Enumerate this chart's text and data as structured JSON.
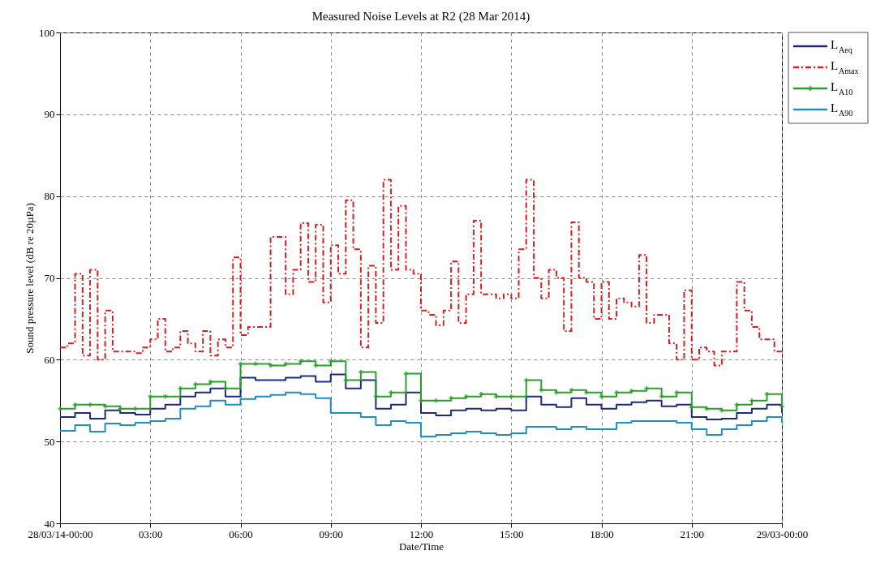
{
  "chart_data": {
    "type": "step",
    "title": "Measured Noise Levels at R2 (28 Mar 2014)",
    "xlabel": "Date/Time",
    "ylabel": "Sound pressure level (dB re 20µPa)",
    "xlim": [
      0,
      24
    ],
    "ylim": [
      40,
      100
    ],
    "xticks": [
      {
        "value": 0,
        "label": "28/03/14-00:00"
      },
      {
        "value": 3,
        "label": "03:00"
      },
      {
        "value": 6,
        "label": "06:00"
      },
      {
        "value": 9,
        "label": "09:00"
      },
      {
        "value": 12,
        "label": "12:00"
      },
      {
        "value": 15,
        "label": "15:00"
      },
      {
        "value": 18,
        "label": "18:00"
      },
      {
        "value": 21,
        "label": "21:00"
      },
      {
        "value": 24,
        "label": "29/03-00:00"
      }
    ],
    "yticks": [
      40,
      50,
      60,
      70,
      80,
      90,
      100
    ],
    "grid": true,
    "legend": "top right",
    "marker": "none",
    "line_style": "solid",
    "x": [
      0,
      0.5,
      1,
      1.5,
      2,
      2.5,
      3,
      3.5,
      4,
      4.5,
      5,
      5.5,
      6,
      6.5,
      7,
      7.5,
      8,
      8.5,
      9,
      9.5,
      10,
      10.5,
      11,
      11.5,
      12,
      12.5,
      13,
      13.5,
      14,
      14.5,
      15,
      15.5,
      16,
      16.5,
      17,
      17.5,
      18,
      18.5,
      19,
      19.5,
      20,
      20.5,
      21,
      21.5,
      22,
      22.5,
      23,
      23.5,
      24
    ],
    "series": [
      {
        "name": "L$_{Aeq}$",
        "color": "#1f2a7a",
        "values": [
          53,
          53.5,
          52.8,
          53.8,
          53.5,
          53.3,
          54,
          54.5,
          55.5,
          56,
          56.5,
          55.5,
          57.8,
          57.5,
          57.5,
          57.8,
          58,
          57.3,
          58.2,
          56.5,
          57.5,
          54,
          54.5,
          56,
          53.5,
          53.2,
          53.8,
          54,
          53.8,
          54,
          53.8,
          55.5,
          54.5,
          54.2,
          55.3,
          54.5,
          54,
          54.5,
          54.8,
          55,
          54.3,
          54.5,
          53,
          52.7,
          52.8,
          53.5,
          54,
          54.5,
          53.5
        ]
      },
      {
        "name": "L$_{Amax}$",
        "color": "#d42020",
        "line_style": "dashed",
        "x": [
          0,
          0.25,
          0.5,
          0.75,
          1,
          1.25,
          1.5,
          1.75,
          2,
          2.25,
          2.5,
          2.75,
          3,
          3.25,
          3.5,
          3.75,
          4,
          4.25,
          4.5,
          4.75,
          5,
          5.25,
          5.5,
          5.75,
          6,
          6.25,
          6.5,
          6.75,
          7,
          7.25,
          7.5,
          7.75,
          8,
          8.25,
          8.5,
          8.75,
          9,
          9.25,
          9.5,
          9.75,
          10,
          10.25,
          10.5,
          10.75,
          11,
          11.25,
          11.5,
          11.75,
          12,
          12.25,
          12.5,
          12.75,
          13,
          13.25,
          13.5,
          13.75,
          14,
          14.25,
          14.5,
          14.75,
          15,
          15.25,
          15.5,
          15.75,
          16,
          16.25,
          16.5,
          16.75,
          17,
          17.25,
          17.5,
          17.75,
          18,
          18.25,
          18.5,
          18.75,
          19,
          19.25,
          19.5,
          19.75,
          20,
          20.25,
          20.5,
          20.75,
          21,
          21.25,
          21.5,
          21.75,
          22,
          22.25,
          22.5,
          22.75,
          23,
          23.25,
          23.5,
          23.75,
          24
        ],
        "values": [
          61.5,
          62,
          70.5,
          60.5,
          71,
          60,
          66,
          61,
          61,
          61,
          60.8,
          61.5,
          62.5,
          65,
          61,
          61.5,
          63.5,
          62,
          61,
          63.5,
          60.5,
          62.5,
          61.5,
          72.5,
          63,
          64,
          64,
          64,
          75,
          75,
          68,
          71,
          76.7,
          69.5,
          76.5,
          67,
          74,
          70.5,
          79.5,
          73.5,
          61.5,
          71.5,
          64.5,
          82,
          71,
          78.8,
          71,
          70.5,
          66,
          65.5,
          64.2,
          66,
          72,
          64.5,
          68,
          77,
          68,
          68,
          67.5,
          68,
          67.5,
          73.5,
          82,
          70,
          67.5,
          71,
          70,
          63.5,
          76.8,
          70,
          69.5,
          65,
          69.5,
          65,
          67.5,
          67,
          66.5,
          72.8,
          64.5,
          65.5,
          65.5,
          62,
          60,
          68.5,
          60,
          61.5,
          61,
          59.3,
          61,
          61,
          69.5,
          66,
          64,
          62.5,
          62.5,
          61,
          61
        ]
      },
      {
        "name": "L$_{A10}$",
        "color": "#2aa02a",
        "marker": "cross",
        "values": [
          54,
          54.5,
          54.5,
          54.3,
          54,
          54,
          55.5,
          55.5,
          56.5,
          57,
          57.3,
          56.5,
          59.5,
          59.5,
          59.3,
          59.5,
          59.8,
          59.3,
          59.8,
          57.5,
          58.5,
          55.5,
          56,
          58.3,
          55,
          55,
          55.3,
          55.5,
          55.8,
          55.5,
          55.5,
          57.5,
          56.3,
          56,
          56.3,
          56,
          55.5,
          56,
          56.2,
          56.5,
          55.5,
          56,
          54.2,
          54,
          53.8,
          54.5,
          55,
          55.8,
          54.3
        ]
      },
      {
        "name": "L$_{A90}$",
        "color": "#1e90c0",
        "values": [
          51.3,
          52,
          51.2,
          52.2,
          52,
          52.3,
          52.5,
          52.8,
          54,
          54.3,
          55,
          54.5,
          55.2,
          55.5,
          55.7,
          56,
          55.8,
          55.3,
          53.5,
          53.5,
          53,
          52,
          52.5,
          52.3,
          50.6,
          50.8,
          51,
          51.2,
          51,
          50.8,
          51,
          51.8,
          51.8,
          51.5,
          51.8,
          51.5,
          51.5,
          52.3,
          52.5,
          52.5,
          52.5,
          52.3,
          51.5,
          50.8,
          51.5,
          52,
          52.5,
          53,
          52.3
        ]
      }
    ]
  }
}
